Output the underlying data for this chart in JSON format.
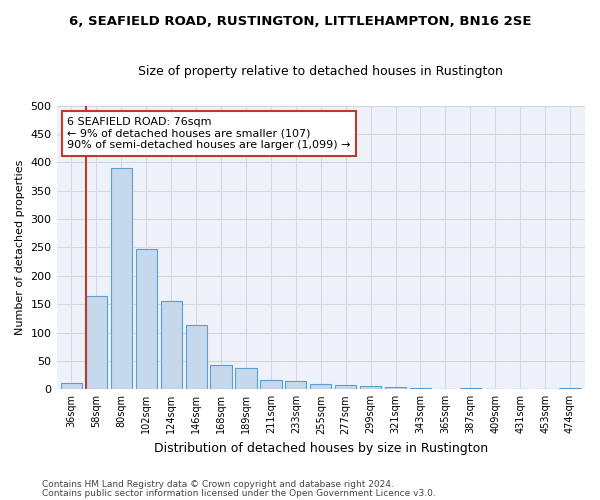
{
  "title": "6, SEAFIELD ROAD, RUSTINGTON, LITTLEHAMPTON, BN16 2SE",
  "subtitle": "Size of property relative to detached houses in Rustington",
  "xlabel": "Distribution of detached houses by size in Rustington",
  "ylabel": "Number of detached properties",
  "categories": [
    "36sqm",
    "58sqm",
    "80sqm",
    "102sqm",
    "124sqm",
    "146sqm",
    "168sqm",
    "189sqm",
    "211sqm",
    "233sqm",
    "255sqm",
    "277sqm",
    "299sqm",
    "321sqm",
    "343sqm",
    "365sqm",
    "387sqm",
    "409sqm",
    "431sqm",
    "453sqm",
    "474sqm"
  ],
  "values": [
    11,
    165,
    390,
    248,
    155,
    113,
    42,
    38,
    17,
    14,
    9,
    7,
    5,
    4,
    3,
    0,
    2,
    0,
    0,
    0,
    3
  ],
  "bar_color": "#c5d8ec",
  "bar_edge_color": "#5a9fd4",
  "vline_color": "#c0392b",
  "annotation_line1": "6 SEAFIELD ROAD: 76sqm",
  "annotation_line2": "← 9% of detached houses are smaller (107)",
  "annotation_line3": "90% of semi-detached houses are larger (1,099) →",
  "annotation_box_edge_color": "#c0392b",
  "ylim": [
    0,
    500
  ],
  "yticks": [
    0,
    50,
    100,
    150,
    200,
    250,
    300,
    350,
    400,
    450,
    500
  ],
  "footer1": "Contains HM Land Registry data © Crown copyright and database right 2024.",
  "footer2": "Contains public sector information licensed under the Open Government Licence v3.0.",
  "grid_color": "#d0d8e8",
  "bg_color": "#eef2f8"
}
